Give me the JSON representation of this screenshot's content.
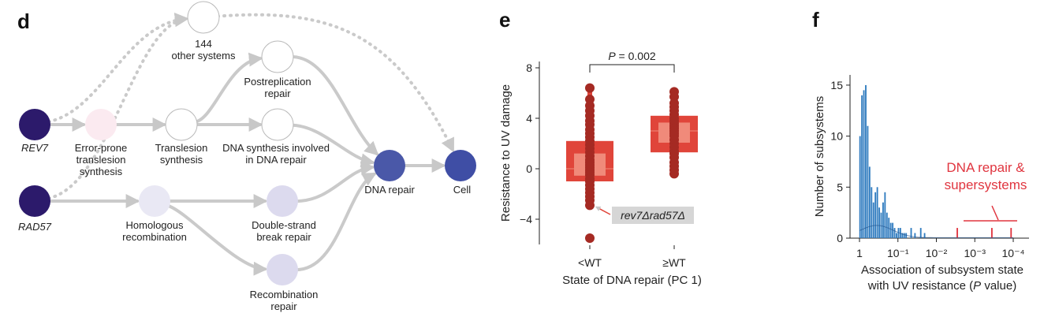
{
  "panel_d": {
    "letter": "d",
    "nodes": [
      {
        "id": "other",
        "label": "144\nother systems",
        "color": "#ffffff"
      },
      {
        "id": "post",
        "label": "Postreplication\nrepair",
        "color": "#ffffff"
      },
      {
        "id": "rev7",
        "label": "REV7",
        "italic": true,
        "color": "#2c1a6b"
      },
      {
        "id": "ep",
        "label": "Error-prone\ntranslesion\nsynthesis",
        "color": "#fbeaf0"
      },
      {
        "id": "tls",
        "label": "Translesion\nsynthesis",
        "color": "#ffffff"
      },
      {
        "id": "dsyn",
        "label": "DNA synthesis involved\nin DNA repair",
        "color": "#ffffff"
      },
      {
        "id": "dnarep",
        "label": "DNA repair",
        "color": "#4a58a8"
      },
      {
        "id": "cell",
        "label": "Cell",
        "color": "#3f4ea5"
      },
      {
        "id": "rad57",
        "label": "RAD57",
        "italic": true,
        "color": "#2c1a6b"
      },
      {
        "id": "hr",
        "label": "Homologous\nrecombination",
        "color": "#e9e8f4"
      },
      {
        "id": "dsb",
        "label": "Double-strand\nbreak repair",
        "color": "#dcdaee"
      },
      {
        "id": "recrep",
        "label": "Recombination\nrepair",
        "color": "#dcdaee"
      }
    ],
    "edges": [
      {
        "from": "rev7",
        "to": "ep",
        "style": "solid"
      },
      {
        "from": "ep",
        "to": "tls",
        "style": "solid"
      },
      {
        "from": "tls",
        "to": "dsyn",
        "style": "solid"
      },
      {
        "from": "tls",
        "to": "post",
        "style": "solid"
      },
      {
        "from": "post",
        "to": "dnarep",
        "style": "solid"
      },
      {
        "from": "dsyn",
        "to": "dnarep",
        "style": "solid"
      },
      {
        "from": "rad57",
        "to": "hr",
        "style": "solid"
      },
      {
        "from": "hr",
        "to": "dsb",
        "style": "solid"
      },
      {
        "from": "hr",
        "to": "recrep",
        "style": "solid"
      },
      {
        "from": "dsb",
        "to": "dnarep",
        "style": "solid"
      },
      {
        "from": "recrep",
        "to": "dnarep",
        "style": "solid"
      },
      {
        "from": "dnarep",
        "to": "cell",
        "style": "solid"
      },
      {
        "from": "rev7",
        "to": "other",
        "style": "dotted"
      },
      {
        "from": "rad57",
        "to": "other",
        "style": "dotted"
      },
      {
        "from": "other",
        "to": "cell",
        "style": "dotted"
      }
    ]
  },
  "panel_e": {
    "letter": "e",
    "annotation_p": "P = 0.002",
    "callout": "rev7Δrad57Δ",
    "colors": {
      "box": "#e0453a",
      "box_inner": "#f08a7a",
      "point": "#a52a23"
    }
  },
  "panel_f": {
    "letter": "f",
    "annotation": "DNA repair &\nsupersystems",
    "colors": {
      "bars": "#2f7bbf",
      "highlight": "#e0353f",
      "curve": "#1d4f8a"
    }
  },
  "chart_data": [
    {
      "type": "box",
      "xlabel": "State of DNA repair (PC 1)",
      "ylabel": "Resistance to UV damage",
      "categories": [
        "<WT",
        "≥WT"
      ],
      "ylim": [
        -6,
        8.5
      ],
      "yticks": [
        -4,
        0,
        4,
        8
      ],
      "box": [
        {
          "category": "<WT",
          "q1": -1.0,
          "median": 0.0,
          "q3": 2.2,
          "whisker_low": -3.0,
          "whisker_high": 6.4
        },
        {
          "category": "≥WT",
          "q1": 1.3,
          "median": 3.0,
          "q3": 4.2,
          "whisker_low": -0.4,
          "whisker_high": 6.1
        }
      ],
      "points": {
        "<WT": [
          6.4,
          5.5,
          5.0,
          4.6,
          4.2,
          3.8,
          3.5,
          3.1,
          2.8,
          2.5,
          2.2,
          1.9,
          1.6,
          1.3,
          1.0,
          0.7,
          0.5,
          0.3,
          0.1,
          -0.1,
          -0.3,
          -0.5,
          -0.8,
          -1.0,
          -1.3,
          -1.6,
          -1.9,
          -2.2,
          -2.5,
          -2.9,
          -5.5
        ],
        "≥WT": [
          6.1,
          5.7,
          5.2,
          4.9,
          4.6,
          4.3,
          4.0,
          3.8,
          3.6,
          3.4,
          3.2,
          3.0,
          2.8,
          2.6,
          2.3,
          2.0,
          1.7,
          1.4,
          1.2,
          0.9,
          0.5,
          0.2,
          -0.1,
          -0.4
        ]
      },
      "significance": "P = 0.002"
    },
    {
      "type": "histogram",
      "xlabel": "Association of subsystem state with UV resistance (P value)",
      "ylabel": "Number of subsystems",
      "x_scale": "log (reversed)",
      "xticks": [
        "1",
        "10⁻¹",
        "10⁻²",
        "10⁻³",
        "10⁻⁴"
      ],
      "ylim": [
        0,
        16
      ],
      "yticks": [
        0,
        5,
        10,
        15
      ],
      "neg_log10_p_bins": [
        0.02,
        0.07,
        0.12,
        0.17,
        0.22,
        0.27,
        0.32,
        0.37,
        0.42,
        0.47,
        0.52,
        0.57,
        0.62,
        0.67,
        0.72,
        0.77,
        0.82,
        0.87,
        0.92,
        0.97,
        1.02,
        1.07,
        1.12,
        1.17,
        1.22,
        1.35,
        1.45,
        1.6,
        1.7,
        2.55,
        3.45,
        3.95
      ],
      "counts": [
        10,
        14,
        14.5,
        15,
        11,
        7,
        5,
        3.5,
        4.5,
        5,
        3,
        2.5,
        3.5,
        4.5,
        2.5,
        2,
        1.5,
        1.5,
        1,
        0.5,
        1,
        1,
        0.5,
        0.5,
        0.5,
        1,
        0.5,
        1,
        0.5,
        1,
        1,
        1
      ],
      "highlight_bins": [
        2.55,
        3.45,
        3.95
      ],
      "highlight_label": "DNA repair & supersystems"
    }
  ]
}
